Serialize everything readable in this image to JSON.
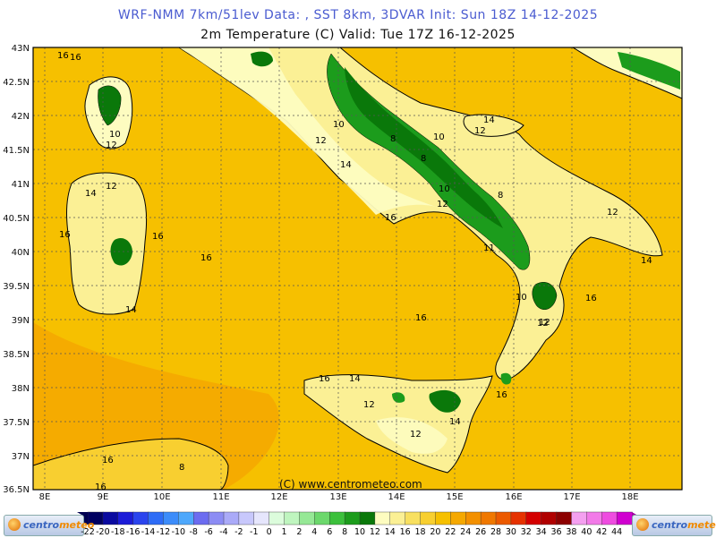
{
  "header": {
    "title_line1": "WRF-NMM 7km/51lev   Data: , SST 8km, 3DVAR   Init: Sun 18Z 14-12-2025",
    "title_line2": "2m Temperature (C)  Valid: Tue 17Z 16-12-2025"
  },
  "map": {
    "lat_ticks": [
      "43N",
      "42.5N",
      "42N",
      "41.5N",
      "41N",
      "40.5N",
      "40N",
      "39.5N",
      "39N",
      "38.5N",
      "38N",
      "37.5N",
      "37N",
      "36.5N"
    ],
    "lon_ticks": [
      "8E",
      "9E",
      "10E",
      "11E",
      "12E",
      "13E",
      "14E",
      "15E",
      "16E",
      "17E",
      "18E"
    ],
    "copyright": "(C) www.centrometeo.com",
    "contour_labels": [
      "16",
      "10",
      "12",
      "14",
      "12",
      "16",
      "16",
      "16",
      "14",
      "12",
      "10",
      "12",
      "14",
      "10",
      "8",
      "8",
      "10",
      "12",
      "12",
      "14",
      "8",
      "16",
      "11",
      "14",
      "12",
      "10",
      "12",
      "16",
      "16",
      "16",
      "14",
      "12",
      "14",
      "12",
      "16",
      "16",
      "16",
      "8",
      "16"
    ]
  },
  "colorbar": {
    "labels": [
      "-22",
      "-20",
      "-18",
      "-16",
      "-14",
      "-12",
      "-10",
      "-8",
      "-6",
      "-4",
      "-2",
      "-1",
      "0",
      "1",
      "2",
      "4",
      "6",
      "8",
      "10",
      "12",
      "14",
      "16",
      "18",
      "20",
      "22",
      "24",
      "26",
      "28",
      "30",
      "32",
      "34",
      "36",
      "38",
      "40",
      "42",
      "44"
    ],
    "colors": [
      "#000060",
      "#0a0aa0",
      "#1c1cd8",
      "#2a44ee",
      "#2e6cf6",
      "#3c8cfa",
      "#4ea8fc",
      "#6c6cf0",
      "#8c8cf4",
      "#aaaaf8",
      "#c8c8fc",
      "#e6e6fc",
      "#dcfcdc",
      "#bff5bf",
      "#96e896",
      "#6cd86c",
      "#3cc03c",
      "#1c9c1c",
      "#0a780a",
      "#fdfcc0",
      "#fbf095",
      "#f8e060",
      "#f8cf30",
      "#f6c000",
      "#f5a800",
      "#f39000",
      "#f07800",
      "#ec5a00",
      "#e63200",
      "#d40000",
      "#b00000",
      "#8c0000",
      "#f4a0f0",
      "#f27ae8",
      "#ee4ce0",
      "#d000d0"
    ],
    "logo_left_a": "centro",
    "logo_left_b": "meteo",
    "logo_right_a": "centro",
    "logo_right_b": "meteo"
  }
}
